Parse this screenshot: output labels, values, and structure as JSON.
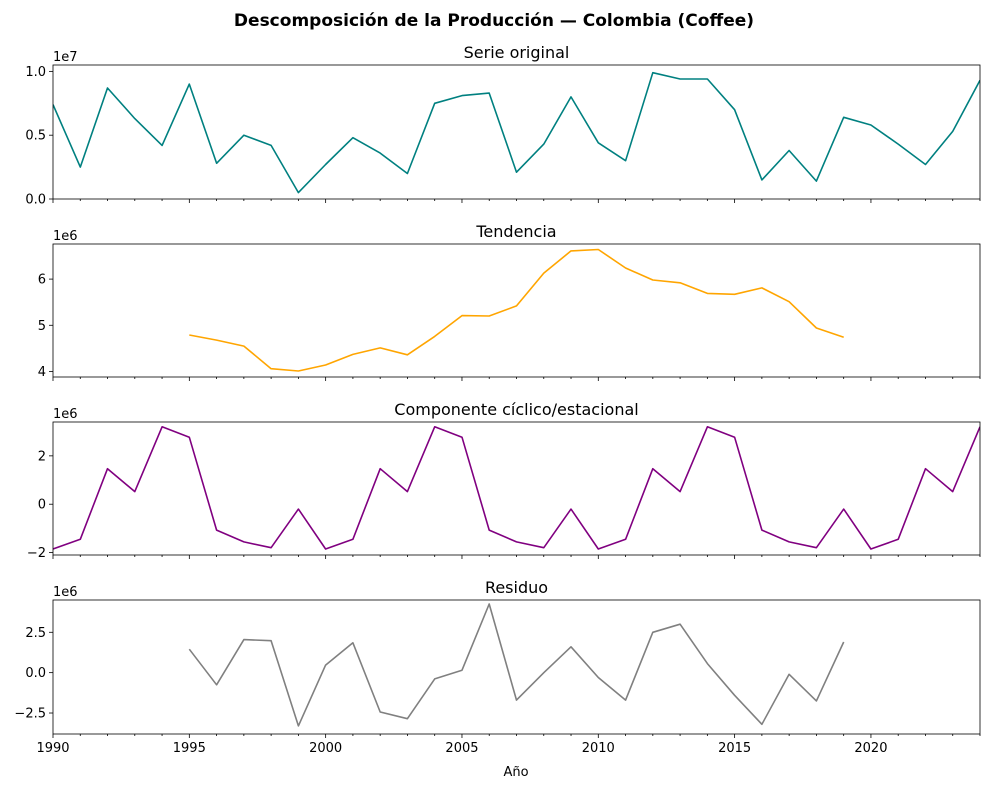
{
  "title": "Descomposición de la Producción — Colombia (Coffee)",
  "xlabel": "Año",
  "x_tick_labels": [
    "1990",
    "1995",
    "2000",
    "2005",
    "2010",
    "2015",
    "2020"
  ],
  "chart_data": [
    {
      "type": "line",
      "title": "Serie original",
      "color": "#008080",
      "xlim": [
        1990,
        2024
      ],
      "ylim": [
        0,
        10500000
      ],
      "y_offset_label": "1e7",
      "y_ticks": [
        0,
        5000000,
        10000000
      ],
      "y_tick_labels": [
        "0.0",
        "0.5",
        "1.0"
      ],
      "x": [
        1990,
        1991,
        1992,
        1993,
        1994,
        1995,
        1996,
        1997,
        1998,
        1999,
        2000,
        2001,
        2002,
        2003,
        2004,
        2005,
        2006,
        2007,
        2008,
        2009,
        2010,
        2011,
        2012,
        2013,
        2014,
        2015,
        2016,
        2017,
        2018,
        2019,
        2020,
        2021,
        2022,
        2023,
        2024
      ],
      "values": [
        7400000,
        2500000,
        8700000,
        6300000,
        4200000,
        9000000,
        2800000,
        5000000,
        4200000,
        500000,
        2700000,
        4800000,
        3600000,
        2000000,
        7500000,
        8100000,
        8300000,
        2100000,
        4300000,
        8000000,
        4400000,
        3000000,
        9900000,
        9400000,
        9400000,
        7000000,
        1500000,
        3800000,
        1400000,
        6400000,
        5800000,
        4300000,
        2700000,
        5300000,
        9300000
      ]
    },
    {
      "type": "line",
      "title": "Tendencia",
      "color": "#FFA500",
      "xlim": [
        1990,
        2024
      ],
      "ylim": [
        3880000,
        6760000
      ],
      "y_offset_label": "1e6",
      "y_ticks": [
        4000000,
        5000000,
        6000000
      ],
      "y_tick_labels": [
        "4",
        "5",
        "6"
      ],
      "x": [
        1995,
        1996,
        1997,
        1998,
        1999,
        2000,
        2001,
        2002,
        2003,
        2004,
        2005,
        2006,
        2007,
        2008,
        2009,
        2010,
        2011,
        2012,
        2013,
        2014,
        2015,
        2016,
        2017,
        2018,
        2019
      ],
      "values": [
        4790000,
        4680000,
        4550000,
        4060000,
        4010000,
        4140000,
        4370000,
        4510000,
        4360000,
        4760000,
        5210000,
        5200000,
        5420000,
        6130000,
        6610000,
        6640000,
        6240000,
        5980000,
        5920000,
        5690000,
        5670000,
        5810000,
        5510000,
        4940000,
        4740000
      ]
    },
    {
      "type": "line",
      "title": "Componente cíclico/estacional",
      "color": "#800080",
      "xlim": [
        1990,
        2024
      ],
      "ylim": [
        -2100000,
        3400000
      ],
      "y_offset_label": "1e6",
      "y_ticks": [
        -2000000,
        0,
        2000000
      ],
      "y_tick_labels": [
        "−2",
        "0",
        "2"
      ],
      "x": [
        1990,
        1991,
        1992,
        1993,
        1994,
        1995,
        1996,
        1997,
        1998,
        1999,
        2000,
        2001,
        2002,
        2003,
        2004,
        2005,
        2006,
        2007,
        2008,
        2009,
        2010,
        2011,
        2012,
        2013,
        2014,
        2015,
        2016,
        2017,
        2018,
        2019,
        2020,
        2021,
        2022,
        2023,
        2024
      ],
      "values": [
        -1850000,
        -1450000,
        1470000,
        520000,
        3200000,
        2770000,
        -1070000,
        -1560000,
        -1800000,
        -200000,
        -1850000,
        -1450000,
        1470000,
        520000,
        3200000,
        2770000,
        -1070000,
        -1560000,
        -1800000,
        -200000,
        -1850000,
        -1450000,
        1470000,
        520000,
        3200000,
        2770000,
        -1070000,
        -1560000,
        -1800000,
        -200000,
        -1850000,
        -1450000,
        1470000,
        520000,
        3200000
      ]
    },
    {
      "type": "line",
      "title": "Residuo",
      "color": "#808080",
      "xlim": [
        1990,
        2024
      ],
      "ylim": [
        -3800000,
        4500000
      ],
      "y_offset_label": "1e6",
      "y_ticks": [
        -2500000,
        0,
        2500000
      ],
      "y_tick_labels": [
        "−2.5",
        "0.0",
        "2.5"
      ],
      "x": [
        1995,
        1996,
        1997,
        1998,
        1999,
        2000,
        2001,
        2002,
        2003,
        2004,
        2005,
        2006,
        2007,
        2008,
        2009,
        2010,
        2011,
        2012,
        2013,
        2014,
        2015,
        2016,
        2017,
        2018,
        2019
      ],
      "values": [
        1450000,
        -750000,
        2050000,
        1980000,
        -3300000,
        470000,
        1850000,
        -2440000,
        -2850000,
        -390000,
        150000,
        4250000,
        -1700000,
        0,
        1600000,
        -300000,
        -1700000,
        2500000,
        3000000,
        560000,
        -1400000,
        -3200000,
        -100000,
        -1750000,
        1900000
      ]
    }
  ]
}
